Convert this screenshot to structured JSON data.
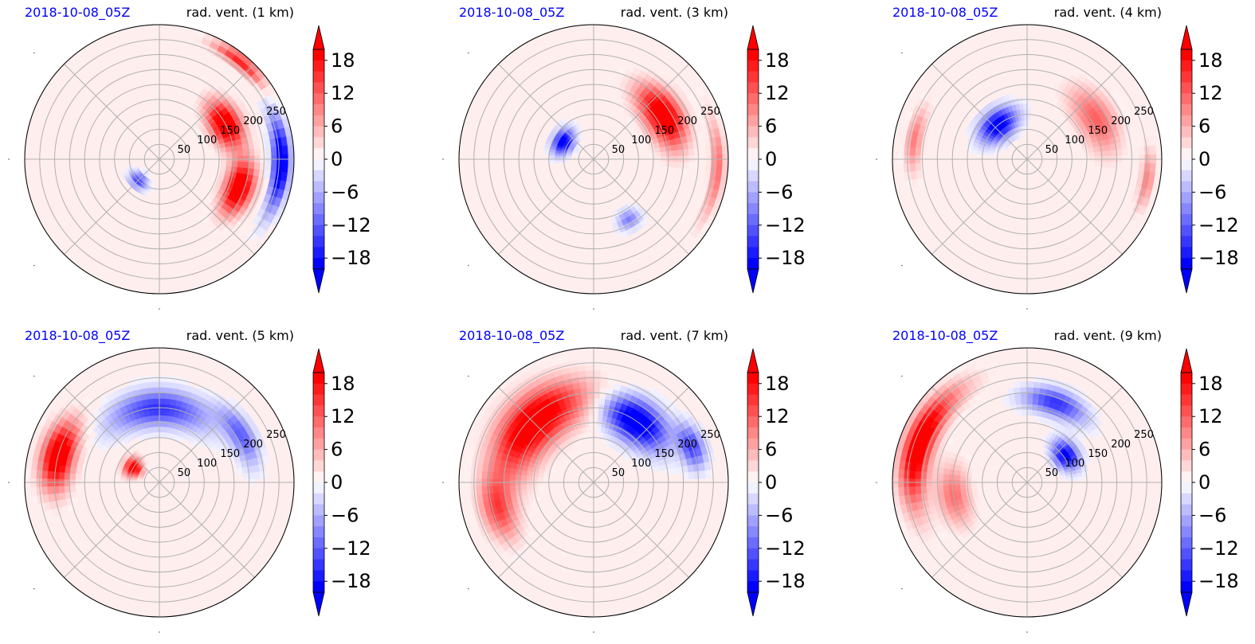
{
  "chart_data": [
    {
      "type": "heatmap",
      "projection": "polar",
      "date_label": "2018-10-08_05Z",
      "title": "rad. vent. (1 km)",
      "ring_ticks": [
        50,
        100,
        150,
        200,
        250
      ],
      "colorbar": {
        "ticks": [
          18,
          12,
          6,
          0,
          -6,
          -12,
          -18
        ],
        "range": [
          -20,
          20
        ],
        "extend": "both",
        "colormap": "bwr",
        "positive_color": "#ff0000",
        "negative_color": "#0000ff",
        "zero_color": "#ffffff"
      },
      "features": [
        {
          "sign": 1,
          "intensity": 1.0,
          "azimuth_deg": 62,
          "range_km": 150,
          "azimuth_width_deg": 40,
          "range_width_km": 65
        },
        {
          "sign": 1,
          "intensity": 1.0,
          "azimuth_deg": 110,
          "range_km": 170,
          "azimuth_width_deg": 40,
          "range_width_km": 60
        },
        {
          "sign": -1,
          "intensity": 1.0,
          "azimuth_deg": 92,
          "range_km": 245,
          "azimuth_width_deg": 45,
          "range_width_km": 35
        },
        {
          "sign": -1,
          "intensity": 0.6,
          "azimuth_deg": 225,
          "range_km": 60,
          "azimuth_width_deg": 40,
          "range_width_km": 30
        },
        {
          "sign": 1,
          "intensity": 0.7,
          "azimuth_deg": 40,
          "range_km": 255,
          "azimuth_width_deg": 30,
          "range_width_km": 30
        }
      ]
    },
    {
      "type": "heatmap",
      "projection": "polar",
      "date_label": "2018-10-08_05Z",
      "title": "rad. vent. (3 km)",
      "ring_ticks": [
        50,
        100,
        150,
        200,
        250
      ],
      "colorbar": {
        "ticks": [
          18,
          12,
          6,
          0,
          -6,
          -12,
          -18
        ],
        "range": [
          -20,
          20
        ],
        "extend": "both",
        "colormap": "bwr",
        "positive_color": "#ff0000",
        "negative_color": "#0000ff",
        "zero_color": "#ffffff"
      },
      "features": [
        {
          "sign": 1,
          "intensity": 1.0,
          "azimuth_deg": 58,
          "range_km": 165,
          "azimuth_width_deg": 50,
          "range_width_km": 75
        },
        {
          "sign": -1,
          "intensity": 0.9,
          "azimuth_deg": 300,
          "range_km": 70,
          "azimuth_width_deg": 45,
          "range_width_km": 40
        },
        {
          "sign": -1,
          "intensity": 0.4,
          "azimuth_deg": 150,
          "range_km": 140,
          "azimuth_width_deg": 20,
          "range_width_km": 40
        },
        {
          "sign": 1,
          "intensity": 0.45,
          "azimuth_deg": 95,
          "range_km": 250,
          "azimuth_width_deg": 50,
          "range_width_km": 30
        }
      ]
    },
    {
      "type": "heatmap",
      "projection": "polar",
      "date_label": "2018-10-08_05Z",
      "title": "rad. vent. (4 km)",
      "ring_ticks": [
        50,
        100,
        150,
        200,
        250
      ],
      "colorbar": {
        "ticks": [
          18,
          12,
          6,
          0,
          -6,
          -12,
          -18
        ],
        "range": [
          -20,
          20
        ],
        "extend": "both",
        "colormap": "bwr",
        "positive_color": "#ff0000",
        "negative_color": "#0000ff",
        "zero_color": "#ffffff"
      },
      "features": [
        {
          "sign": -1,
          "intensity": 0.9,
          "azimuth_deg": 320,
          "range_km": 90,
          "azimuth_width_deg": 55,
          "range_width_km": 60
        },
        {
          "sign": 1,
          "intensity": 0.5,
          "azimuth_deg": 60,
          "range_km": 160,
          "azimuth_width_deg": 55,
          "range_width_km": 80
        },
        {
          "sign": 1,
          "intensity": 0.4,
          "azimuth_deg": 280,
          "range_km": 230,
          "azimuth_width_deg": 35,
          "range_width_km": 35
        },
        {
          "sign": 1,
          "intensity": 0.4,
          "azimuth_deg": 100,
          "range_km": 245,
          "azimuth_width_deg": 30,
          "range_width_km": 30
        }
      ]
    },
    {
      "type": "heatmap",
      "projection": "polar",
      "date_label": "2018-10-08_05Z",
      "title": "rad. vent. (5 km)",
      "ring_ticks": [
        50,
        100,
        150,
        200,
        250
      ],
      "colorbar": {
        "ticks": [
          18,
          12,
          6,
          0,
          -6,
          -12,
          -18
        ],
        "range": [
          -20,
          20
        ],
        "extend": "both",
        "colormap": "bwr",
        "positive_color": "#ff0000",
        "negative_color": "#0000ff",
        "zero_color": "#ffffff"
      },
      "features": [
        {
          "sign": 1,
          "intensity": 1.0,
          "azimuth_deg": 285,
          "range_km": 210,
          "azimuth_width_deg": 40,
          "range_width_km": 70
        },
        {
          "sign": 1,
          "intensity": 0.9,
          "azimuth_deg": 300,
          "range_km": 60,
          "azimuth_width_deg": 40,
          "range_width_km": 40
        },
        {
          "sign": -1,
          "intensity": 0.65,
          "azimuth_deg": 0,
          "range_km": 150,
          "azimuth_width_deg": 80,
          "range_width_km": 75
        },
        {
          "sign": -1,
          "intensity": 0.5,
          "azimuth_deg": 60,
          "range_km": 190,
          "azimuth_width_deg": 40,
          "range_width_km": 50
        }
      ]
    },
    {
      "type": "heatmap",
      "projection": "polar",
      "date_label": "2018-10-08_05Z",
      "title": "rad. vent. (7 km)",
      "ring_ticks": [
        50,
        100,
        150,
        200,
        250
      ],
      "colorbar": {
        "ticks": [
          18,
          12,
          6,
          0,
          -6,
          -12,
          -18
        ],
        "range": [
          -20,
          20
        ],
        "extend": "both",
        "colormap": "bwr",
        "positive_color": "#ff0000",
        "negative_color": "#0000ff",
        "zero_color": "#ffffff"
      },
      "features": [
        {
          "sign": 1,
          "intensity": 1.0,
          "azimuth_deg": 315,
          "range_km": 170,
          "azimuth_width_deg": 85,
          "range_width_km": 110
        },
        {
          "sign": 1,
          "intensity": 0.55,
          "azimuth_deg": 255,
          "range_km": 200,
          "azimuth_width_deg": 40,
          "range_width_km": 70
        },
        {
          "sign": -1,
          "intensity": 1.0,
          "azimuth_deg": 35,
          "range_km": 150,
          "azimuth_width_deg": 55,
          "range_width_km": 85
        },
        {
          "sign": -1,
          "intensity": 0.6,
          "azimuth_deg": 70,
          "range_km": 210,
          "azimuth_width_deg": 25,
          "range_width_km": 50
        }
      ]
    },
    {
      "type": "heatmap",
      "projection": "polar",
      "date_label": "2018-10-08_05Z",
      "title": "rad. vent. (9 km)",
      "ring_ticks": [
        50,
        100,
        150,
        200,
        250
      ],
      "colorbar": {
        "ticks": [
          18,
          12,
          6,
          0,
          -6,
          -12,
          -18
        ],
        "range": [
          -20,
          20
        ],
        "extend": "both",
        "colormap": "bwr",
        "positive_color": "#ff0000",
        "negative_color": "#0000ff",
        "zero_color": "#ffffff"
      },
      "features": [
        {
          "sign": 1,
          "intensity": 1.0,
          "azimuth_deg": 290,
          "range_km": 230,
          "azimuth_width_deg": 65,
          "range_width_km": 60
        },
        {
          "sign": 1,
          "intensity": 0.45,
          "azimuth_deg": 260,
          "range_km": 150,
          "azimuth_width_deg": 50,
          "range_width_km": 70
        },
        {
          "sign": -1,
          "intensity": 0.85,
          "azimuth_deg": 55,
          "range_km": 95,
          "azimuth_width_deg": 40,
          "range_width_km": 50
        },
        {
          "sign": -1,
          "intensity": 0.65,
          "azimuth_deg": 20,
          "range_km": 170,
          "azimuth_width_deg": 45,
          "range_width_km": 55
        }
      ]
    }
  ]
}
